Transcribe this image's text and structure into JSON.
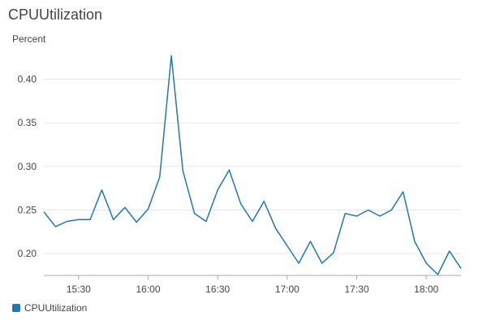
{
  "chart_data": {
    "type": "line",
    "title": "CPUUtilization",
    "ylabel": "Percent",
    "xlabel": "",
    "x_start": "15:15",
    "x_step_minutes": 5,
    "x_ticks": [
      "15:30",
      "16:00",
      "16:30",
      "17:00",
      "17:30",
      "18:00"
    ],
    "y_ticks": [
      0.2,
      0.25,
      0.3,
      0.35,
      0.4
    ],
    "ylim": [
      0.175,
      0.435
    ],
    "grid": true,
    "legend_position": "bottom-left",
    "series": [
      {
        "name": "CPUUtilization",
        "color": "#1f77b4",
        "values": [
          0.248,
          0.231,
          0.237,
          0.239,
          0.239,
          0.273,
          0.239,
          0.253,
          0.236,
          0.251,
          0.288,
          0.427,
          0.295,
          0.246,
          0.237,
          0.273,
          0.296,
          0.257,
          0.237,
          0.26,
          0.229,
          0.209,
          0.189,
          0.214,
          0.189,
          0.201,
          0.246,
          0.243,
          0.25,
          0.243,
          0.25,
          0.271,
          0.214,
          0.189,
          0.176,
          0.203,
          0.183
        ]
      }
    ]
  }
}
